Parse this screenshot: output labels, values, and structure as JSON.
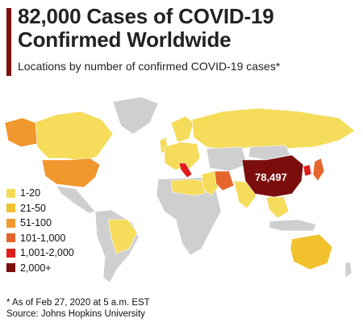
{
  "title": "82,000 Cases of COVID-19 Confirmed Worldwide",
  "subtitle": "Locations by number of confirmed COVID-19 cases*",
  "china_label": "78,497",
  "legend": [
    {
      "label": "1-20",
      "color": "#f5dc5a"
    },
    {
      "label": "21-50",
      "color": "#f2c12e"
    },
    {
      "label": "51-100",
      "color": "#f0982e"
    },
    {
      "label": "101-1,000",
      "color": "#e5652c"
    },
    {
      "label": "1,001-2,000",
      "color": "#e01e1e"
    },
    {
      "label": "2,000+",
      "color": "#7b0d0d"
    }
  ],
  "footnote": {
    "line1": "* As of Feb 27, 2020 at 5 a.m. EST",
    "line2": "Source: Johns Hopkins University"
  },
  "colors": {
    "no_data": "#cfcfcf",
    "bar": "#7b0d0d"
  },
  "region_colors": {
    "canada": "#f5dc5a",
    "alaska": "#f0982e",
    "usa": "#f0982e",
    "mexico": "#cfcfcf",
    "greenland": "#cfcfcf",
    "south_america": "#cfcfcf",
    "brazil": "#f5dc5a",
    "europe": "#f5dc5a",
    "uk_ireland": "#f5dc5a",
    "scandinavia": "#f5dc5a",
    "italy": "#e01e1e",
    "africa": "#cfcfcf",
    "egypt_algeria": "#f5dc5a",
    "middle_east": "#f5dc5a",
    "iran": "#e5652c",
    "russia": "#f5dc5a",
    "central_asia": "#cfcfcf",
    "india": "#f5dc5a",
    "china": "#7b0d0d",
    "mongolia": "#cfcfcf",
    "japan": "#e5652c",
    "korea": "#e01e1e",
    "southeast_asia": "#f5dc5a",
    "indonesia": "#cfcfcf",
    "australia": "#f2c12e",
    "new_zealand": "#cfcfcf"
  }
}
